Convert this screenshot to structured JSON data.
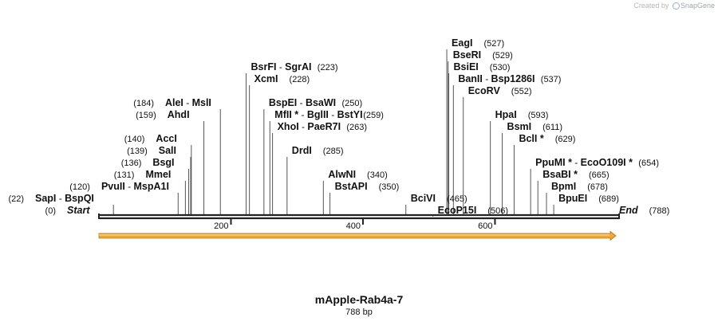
{
  "credit": {
    "prefix": "Created by",
    "brand": "SnapGene"
  },
  "map": {
    "title": "mApple-Rab4a-7",
    "length_label": "788 bp",
    "length_bp": 788,
    "ruler_ticks": [
      {
        "bp": 200,
        "label": "200"
      },
      {
        "bp": 400,
        "label": "400"
      },
      {
        "bp": 600,
        "label": "600"
      }
    ],
    "feature": {
      "name": "orf-arrow",
      "start": 0,
      "end": 788,
      "color": "#f0a830",
      "outline": "#b07820"
    },
    "sites": [
      {
        "row": 15,
        "bp": 0,
        "names": [
          "Start"
        ],
        "position": "(0)",
        "style": "italic",
        "pos_side": "left"
      },
      {
        "row": 14,
        "bp": 22,
        "names": [
          "SapI",
          "BspQI"
        ],
        "position": "(22)",
        "pos_side": "left"
      },
      {
        "row": 13,
        "bp": 120,
        "names": [
          "PvuII",
          "MspA1I"
        ],
        "position": "(120)",
        "pos_side": "left"
      },
      {
        "row": 12,
        "bp": 131,
        "names": [
          "MmeI"
        ],
        "position": "(131)",
        "pos_side": "left"
      },
      {
        "row": 11,
        "bp": 136,
        "names": [
          "BsgI"
        ],
        "position": "(136)",
        "pos_side": "left"
      },
      {
        "row": 10,
        "bp": 139,
        "names": [
          "SalI"
        ],
        "position": "(139)",
        "pos_side": "left"
      },
      {
        "row": 9,
        "bp": 140,
        "names": [
          "AccI"
        ],
        "position": "(140)",
        "pos_side": "left"
      },
      {
        "row": 7,
        "bp": 159,
        "names": [
          "AhdI"
        ],
        "position": "(159)",
        "pos_side": "left"
      },
      {
        "row": 6,
        "bp": 184,
        "names": [
          "AleI",
          "MslI"
        ],
        "position": "(184)",
        "pos_side": "left"
      },
      {
        "row": 3,
        "bp": 223,
        "names": [
          "BsrFI",
          "SgrAI"
        ],
        "position": "(223)",
        "pos_side": "right"
      },
      {
        "row": 4,
        "bp": 228,
        "names": [
          "XcmI"
        ],
        "position": "(228)",
        "pos_side": "right"
      },
      {
        "row": 6,
        "bp": 250,
        "names": [
          "BspEI",
          "BsaWI"
        ],
        "position": "(250)",
        "pos_side": "right"
      },
      {
        "row": 7,
        "bp": 259,
        "names": [
          "MfII *",
          "BglII",
          "BstYI"
        ],
        "position": "(259)",
        "pos_side": "right"
      },
      {
        "row": 8,
        "bp": 263,
        "names": [
          "XhoI",
          "PaeR7I"
        ],
        "position": "(263)",
        "pos_side": "right"
      },
      {
        "row": 10,
        "bp": 285,
        "names": [
          "DrdI"
        ],
        "position": "(285)",
        "pos_side": "right"
      },
      {
        "row": 12,
        "bp": 340,
        "names": [
          "AlwNI"
        ],
        "position": "(340)",
        "pos_side": "right"
      },
      {
        "row": 13,
        "bp": 350,
        "names": [
          "BstAPI"
        ],
        "position": "(350)",
        "pos_side": "right"
      },
      {
        "row": 14,
        "bp": 465,
        "names": [
          "BciVI"
        ],
        "position": "(465)",
        "pos_side": "right"
      },
      {
        "row": 15,
        "bp": 506,
        "names": [
          "EcoP15I"
        ],
        "position": "(506)",
        "pos_side": "right"
      },
      {
        "row": 1,
        "bp": 527,
        "names": [
          "EagI"
        ],
        "position": "(527)",
        "pos_side": "right"
      },
      {
        "row": 2,
        "bp": 529,
        "names": [
          "BseRI"
        ],
        "position": "(529)",
        "pos_side": "right"
      },
      {
        "row": 3,
        "bp": 530,
        "names": [
          "BsiEI"
        ],
        "position": "(530)",
        "pos_side": "right"
      },
      {
        "row": 4,
        "bp": 537,
        "names": [
          "BanII",
          "Bsp1286I"
        ],
        "position": "(537)",
        "pos_side": "right"
      },
      {
        "row": 5,
        "bp": 552,
        "names": [
          "EcoRV"
        ],
        "position": "(552)",
        "pos_side": "right"
      },
      {
        "row": 7,
        "bp": 593,
        "names": [
          "HpaI"
        ],
        "position": "(593)",
        "pos_side": "right"
      },
      {
        "row": 8,
        "bp": 611,
        "names": [
          "BsmI"
        ],
        "position": "(611)",
        "pos_side": "right"
      },
      {
        "row": 9,
        "bp": 629,
        "names": [
          "BclI *"
        ],
        "position": "(629)",
        "pos_side": "right"
      },
      {
        "row": 11,
        "bp": 654,
        "names": [
          "PpuMI *",
          "EcoO109I *"
        ],
        "position": "(654)",
        "pos_side": "right"
      },
      {
        "row": 12,
        "bp": 665,
        "names": [
          "BsaBI *"
        ],
        "position": "(665)",
        "pos_side": "right"
      },
      {
        "row": 13,
        "bp": 678,
        "names": [
          "BpmI"
        ],
        "position": "(678)",
        "pos_side": "right"
      },
      {
        "row": 14,
        "bp": 689,
        "names": [
          "BpuEI"
        ],
        "position": "(689)",
        "pos_side": "right"
      },
      {
        "row": 15,
        "bp": 788,
        "names": [
          "End"
        ],
        "position": "(788)",
        "style": "italic",
        "pos_side": "right"
      }
    ]
  }
}
